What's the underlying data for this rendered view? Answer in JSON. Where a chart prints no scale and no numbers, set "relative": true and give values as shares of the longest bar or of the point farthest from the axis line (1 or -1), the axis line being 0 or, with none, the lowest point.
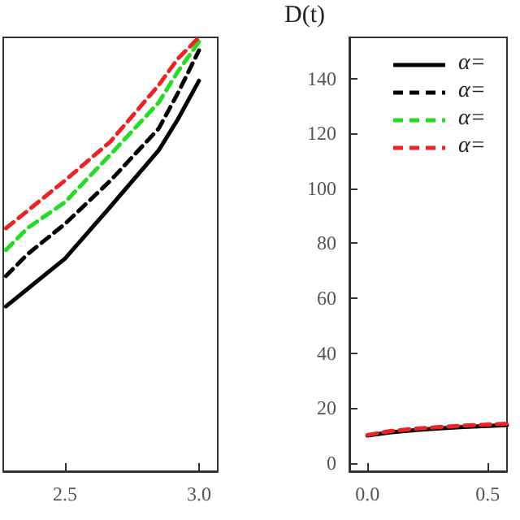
{
  "chart_data": [
    {
      "type": "line",
      "relative": true,
      "x": [
        2.28,
        2.36,
        2.5,
        2.67,
        2.85,
        2.92,
        3.0
      ],
      "xlim": [
        2.27,
        3.07
      ],
      "xticks": [
        2.5,
        {
          "value": 3.0,
          "label": "3.0"
        }
      ],
      "tick_labels": "x",
      "series": [
        {
          "color": "#000000",
          "line_style": "solid",
          "values": [
            0.38,
            0.42,
            0.49,
            0.61,
            0.74,
            0.81,
            0.9
          ]
        },
        {
          "color": "#000000",
          "line_style": "dashed",
          "values": [
            0.45,
            0.5,
            0.57,
            0.67,
            0.79,
            0.87,
            0.97
          ]
        },
        {
          "color": "#22dd22",
          "line_style": "dashed",
          "values": [
            0.51,
            0.56,
            0.62,
            0.73,
            0.85,
            0.92,
            0.99
          ]
        },
        {
          "color": "#ee2222",
          "line_style": "dashed",
          "values": [
            0.56,
            0.6,
            0.67,
            0.76,
            0.89,
            0.95,
            1.0
          ]
        }
      ]
    },
    {
      "type": "line",
      "ylabel": "D(t)",
      "x": [
        0,
        0.1,
        0.2,
        0.3,
        0.4,
        0.5,
        0.58
      ],
      "xlim": [
        -0.075,
        0.58
      ],
      "xticks": [
        {
          "value": 0,
          "label": "0.0"
        },
        0.5
      ],
      "ylim": [
        -3,
        155
      ],
      "yticks": [
        0,
        20,
        40,
        60,
        80,
        100,
        120,
        140
      ],
      "legend": "top right",
      "series": [
        {
          "name": "α=",
          "color": "#000000",
          "line_style": "solid",
          "values": [
            10,
            11.2,
            12,
            12.6,
            13.1,
            13.5,
            13.8
          ]
        },
        {
          "name": "α=",
          "color": "#000000",
          "line_style": "dashed",
          "values": [
            null,
            null,
            null,
            null,
            null,
            null,
            null
          ]
        },
        {
          "name": "α=",
          "color": "#22dd22",
          "line_style": "dashed",
          "values": [
            null,
            null,
            null,
            null,
            null,
            null,
            null
          ]
        },
        {
          "name": "α=",
          "color": "#ee2222",
          "line_style": "dashed",
          "values": [
            10.2,
            11.7,
            12.5,
            13.1,
            13.6,
            14,
            14.3
          ]
        }
      ]
    }
  ]
}
